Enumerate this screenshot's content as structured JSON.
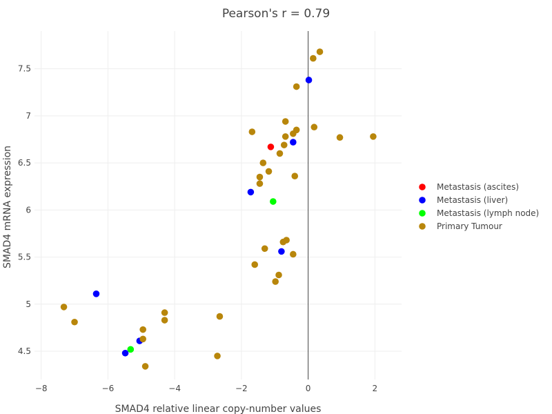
{
  "chart_data": {
    "type": "scatter",
    "title": "Pearson's r = 0.79",
    "xlabel": "SMAD4 relative linear copy-number values",
    "ylabel": "SMAD4 mRNA expression",
    "xlim": [
      -8.2,
      2.8
    ],
    "ylim": [
      4.2,
      7.9
    ],
    "x_ticks": [
      -8,
      -6,
      -4,
      -2,
      0,
      2
    ],
    "y_ticks": [
      4.5,
      5,
      5.5,
      6,
      6.5,
      7,
      7.5
    ],
    "x_tick_labels": [
      "−8",
      "−6",
      "−4",
      "−2",
      "0",
      "2"
    ],
    "y_tick_labels": [
      "4.5",
      "5",
      "5.5",
      "6",
      "6.5",
      "7",
      "7.5"
    ],
    "grid": true,
    "legend_position": "right",
    "series": [
      {
        "name": "Metastasis (ascites)",
        "color": "#ff0000",
        "x": [
          -1.12
        ],
        "y": [
          6.67
        ]
      },
      {
        "name": "Metastasis (liver)",
        "color": "#0000ff",
        "x": [
          0.02,
          -0.45,
          -1.72,
          -0.8,
          -6.35,
          -5.05,
          -5.48
        ],
        "y": [
          7.38,
          6.72,
          6.19,
          5.56,
          5.11,
          4.61,
          4.48
        ]
      },
      {
        "name": "Metastasis (lymph node)",
        "color": "#00ff00",
        "x": [
          -1.05,
          -5.32
        ],
        "y": [
          6.09,
          4.52
        ]
      },
      {
        "name": "Primary Tumour",
        "color": "#b8860b",
        "x": [
          0.35,
          0.15,
          -0.35,
          -0.68,
          -0.35,
          -0.45,
          0.18,
          -1.68,
          -0.68,
          0.95,
          1.95,
          -0.72,
          -0.85,
          -1.35,
          -1.18,
          -1.45,
          -1.45,
          -0.4,
          -0.65,
          -0.75,
          -1.3,
          -0.45,
          -1.6,
          -0.88,
          -0.98,
          -7.32,
          -7.0,
          -4.3,
          -2.65,
          -4.3,
          -4.95,
          -4.95,
          -2.72,
          -4.88
        ],
        "y": [
          7.68,
          7.61,
          7.31,
          6.94,
          6.85,
          6.81,
          6.88,
          6.83,
          6.78,
          6.77,
          6.78,
          6.69,
          6.6,
          6.5,
          6.41,
          6.35,
          6.28,
          6.36,
          5.68,
          5.66,
          5.59,
          5.53,
          5.42,
          5.31,
          5.24,
          4.97,
          4.81,
          4.91,
          4.87,
          4.83,
          4.73,
          4.63,
          4.45,
          4.34
        ]
      }
    ]
  }
}
